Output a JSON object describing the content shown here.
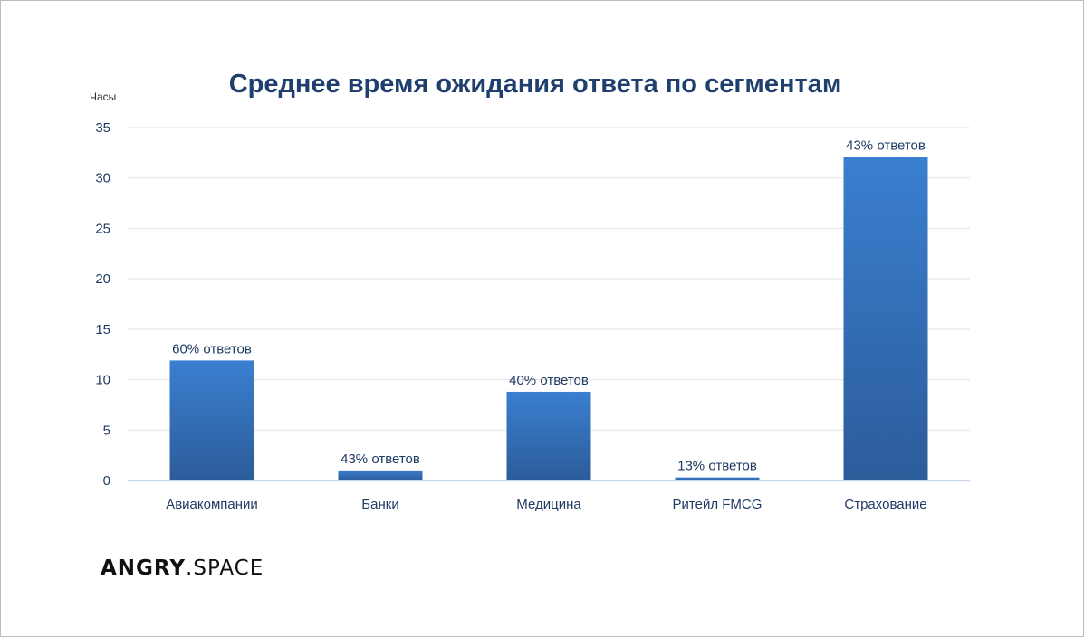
{
  "chart_data": {
    "type": "bar",
    "title": "Среднее время ожидания ответа по сегментам",
    "ylabel": "Часы",
    "xlabel": "",
    "ylim": [
      0,
      35
    ],
    "yticks": [
      0,
      5,
      10,
      15,
      20,
      25,
      30,
      35
    ],
    "grid": true,
    "legend": "none",
    "categories": [
      "Авиакомпании",
      "Банки",
      "Медицина",
      "Ритейл FMCG",
      "Страхование"
    ],
    "values": [
      11.9,
      1.0,
      8.8,
      0.3,
      32.1
    ],
    "data_labels": [
      "60% ответов",
      "43% ответов",
      "40% ответов",
      "13% ответов",
      "43% ответов"
    ],
    "colors": {
      "bar_top": "#3a7fd0",
      "bar_bottom": "#2c5c9a",
      "grid": "#e3e3e3",
      "axis": "#c8d6ea",
      "text": "#1f3a63"
    }
  },
  "brand": {
    "logo_bold": "ANGRY",
    "logo_light": ".SPACE"
  }
}
